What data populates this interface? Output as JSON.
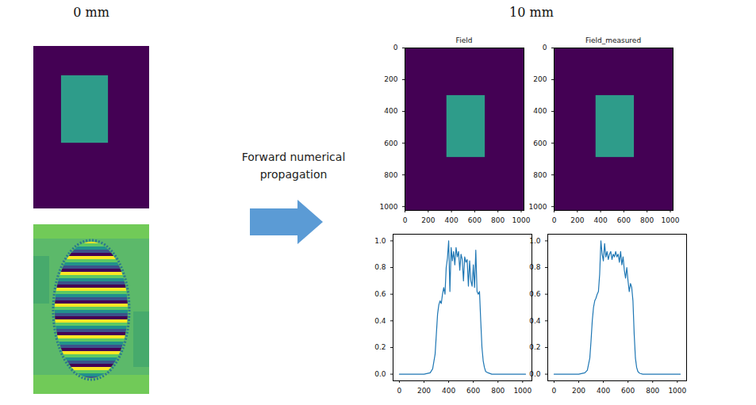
{
  "headings": [
    "0 mm",
    "10 mm"
  ],
  "arrow_label": "Forward numerical propagation",
  "chart_data": [
    {
      "type": "image",
      "xlim": [
        0,
        1024
      ],
      "ylim": [
        0,
        1024
      ],
      "tick_labels": false,
      "field_x": [
        245,
        660
      ],
      "field_y": [
        185,
        610
      ],
      "color": "#2e9c8a",
      "background": "#440154"
    },
    {
      "type": "image",
      "title": "Field",
      "xlim": [
        0,
        1024
      ],
      "ylim": [
        0,
        1024
      ],
      "xticks": [
        0,
        200,
        400,
        600,
        800,
        1000
      ],
      "yticks": [
        0,
        200,
        400,
        600,
        800,
        1000
      ],
      "field_x": [
        360,
        690
      ],
      "field_y": [
        300,
        690
      ],
      "color": "#2e9c8a",
      "background": "#440154"
    },
    {
      "type": "image",
      "title": "Field_measured",
      "xlim": [
        0,
        1024
      ],
      "ylim": [
        0,
        1024
      ],
      "xticks": [
        0,
        200,
        400,
        600,
        800,
        1000
      ],
      "yticks": [
        0,
        200,
        400,
        600,
        800,
        1000
      ],
      "field_x": [
        360,
        690
      ],
      "field_y": [
        300,
        690
      ],
      "color": "#2e9c8a",
      "background": "#440154"
    },
    {
      "type": "line",
      "color": "#1f77b4",
      "xlim": [
        -51,
        1075
      ],
      "ylim": [
        -0.05,
        1.05
      ],
      "xticks": [
        0,
        200,
        400,
        600,
        800,
        1000
      ],
      "yticks": [
        {
          "value": 0,
          "label": "0.0"
        },
        {
          "value": 0.2,
          "label": "0.2"
        },
        {
          "value": 0.4,
          "label": "0.4"
        },
        {
          "value": 0.6,
          "label": "0.6"
        },
        {
          "value": 0.8,
          "label": "0.8"
        },
        {
          "value": 1,
          "label": "1.0"
        }
      ],
      "x": [
        0,
        100,
        200,
        250,
        270,
        290,
        300,
        310,
        320,
        330,
        340,
        350,
        360,
        370,
        380,
        390,
        400,
        410,
        420,
        430,
        440,
        450,
        460,
        470,
        480,
        490,
        500,
        510,
        520,
        530,
        540,
        550,
        560,
        570,
        580,
        590,
        600,
        610,
        620,
        630,
        640,
        650,
        660,
        670,
        680,
        690,
        700,
        720,
        750,
        800,
        900,
        1024
      ],
      "values": [
        0,
        0,
        0,
        0.01,
        0.04,
        0.15,
        0.3,
        0.45,
        0.52,
        0.55,
        0.53,
        0.6,
        0.65,
        0.6,
        0.8,
        0.87,
        1.0,
        0.62,
        0.95,
        0.85,
        0.92,
        0.82,
        0.95,
        0.88,
        0.92,
        0.78,
        0.9,
        0.86,
        0.7,
        0.88,
        0.84,
        0.86,
        0.66,
        0.85,
        0.7,
        0.66,
        0.82,
        0.65,
        0.93,
        0.62,
        0.6,
        0.62,
        0.4,
        0.2,
        0.1,
        0.05,
        0.02,
        0.01,
        0,
        0,
        0,
        0
      ]
    },
    {
      "type": "line",
      "color": "#1f77b4",
      "xlim": [
        -51,
        1075
      ],
      "ylim": [
        -0.05,
        1.05
      ],
      "xticks": [
        0,
        200,
        400,
        600,
        800,
        1000
      ],
      "yticks": [
        {
          "value": 0,
          "label": "0.0"
        },
        {
          "value": 0.2,
          "label": "0.2"
        },
        {
          "value": 0.4,
          "label": "0.4"
        },
        {
          "value": 0.6,
          "label": "0.6"
        },
        {
          "value": 0.8,
          "label": "0.8"
        },
        {
          "value": 1,
          "label": "1.0"
        }
      ],
      "x": [
        0,
        100,
        200,
        250,
        270,
        290,
        300,
        310,
        320,
        330,
        340,
        350,
        360,
        370,
        380,
        390,
        400,
        410,
        420,
        430,
        440,
        450,
        460,
        470,
        480,
        490,
        500,
        510,
        520,
        530,
        540,
        550,
        560,
        570,
        580,
        590,
        600,
        610,
        620,
        630,
        640,
        650,
        660,
        670,
        680,
        690,
        700,
        720,
        750,
        800,
        900,
        1024
      ],
      "values": [
        0,
        0,
        0,
        0.01,
        0.03,
        0.12,
        0.25,
        0.4,
        0.5,
        0.55,
        0.57,
        0.6,
        0.62,
        0.75,
        1.0,
        0.9,
        0.85,
        0.98,
        0.88,
        0.92,
        0.86,
        0.9,
        0.92,
        0.86,
        0.9,
        0.88,
        0.92,
        0.88,
        0.9,
        0.84,
        0.92,
        0.82,
        0.88,
        0.78,
        0.72,
        0.8,
        0.7,
        0.62,
        0.68,
        0.65,
        0.55,
        0.3,
        0.12,
        0.05,
        0.02,
        0.01,
        0.005,
        0,
        0,
        0,
        0,
        0
      ]
    }
  ]
}
